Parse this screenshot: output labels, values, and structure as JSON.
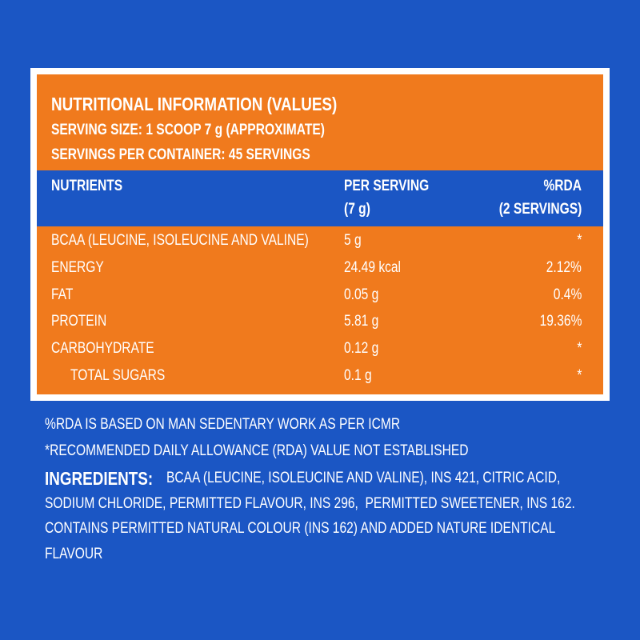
{
  "header": {
    "title": "NUTRITIONAL INFORMATION (VALUES)",
    "serving_size": "SERVING SIZE: 1 SCOOP 7 g (APPROXIMATE)",
    "servings_per_container": "SERVINGS PER CONTAINER: 45 SERVINGS"
  },
  "table": {
    "columns": [
      [
        "NUTRIENTS"
      ],
      [
        "PER SERVING",
        "(7 g)"
      ],
      [
        "%RDA",
        "(2 SERVINGS)"
      ]
    ],
    "rows": [
      [
        "BCAA (LEUCINE, ISOLEUCINE AND VALINE)",
        "5 g",
        "*"
      ],
      [
        "ENERGY",
        "24.49 kcal",
        "2.12%"
      ],
      [
        "FAT",
        "0.05 g",
        "0.4%"
      ],
      [
        "PROTEIN",
        "5.81 g",
        "19.36%"
      ],
      [
        "CARBOHYDRATE",
        "0.12 g",
        "*"
      ],
      [
        "TOTAL SUGARS",
        "0.1 g",
        "*"
      ]
    ]
  },
  "footnotes": [
    "%RDA IS BASED ON MAN SEDENTARY WORK AS PER ICMR",
    "*RECOMMENDED DAILY ALLOWANCE (RDA) VALUE NOT ESTABLISHED"
  ],
  "ingredients": {
    "label": "INGREDIENTS:",
    "lines": [
      "BCAA (LEUCINE, ISOLEUCINE AND VALINE), INS 421, CITRIC ACID,",
      "SODIUM CHLORIDE, PERMITTED FLAVOUR, INS 296,  PERMITTED SWEETENER, INS 162.",
      "CONTAINS PERMITTED NATURAL COLOUR (INS 162) AND ADDED NATURE IDENTICAL",
      "FLAVOUR"
    ]
  }
}
